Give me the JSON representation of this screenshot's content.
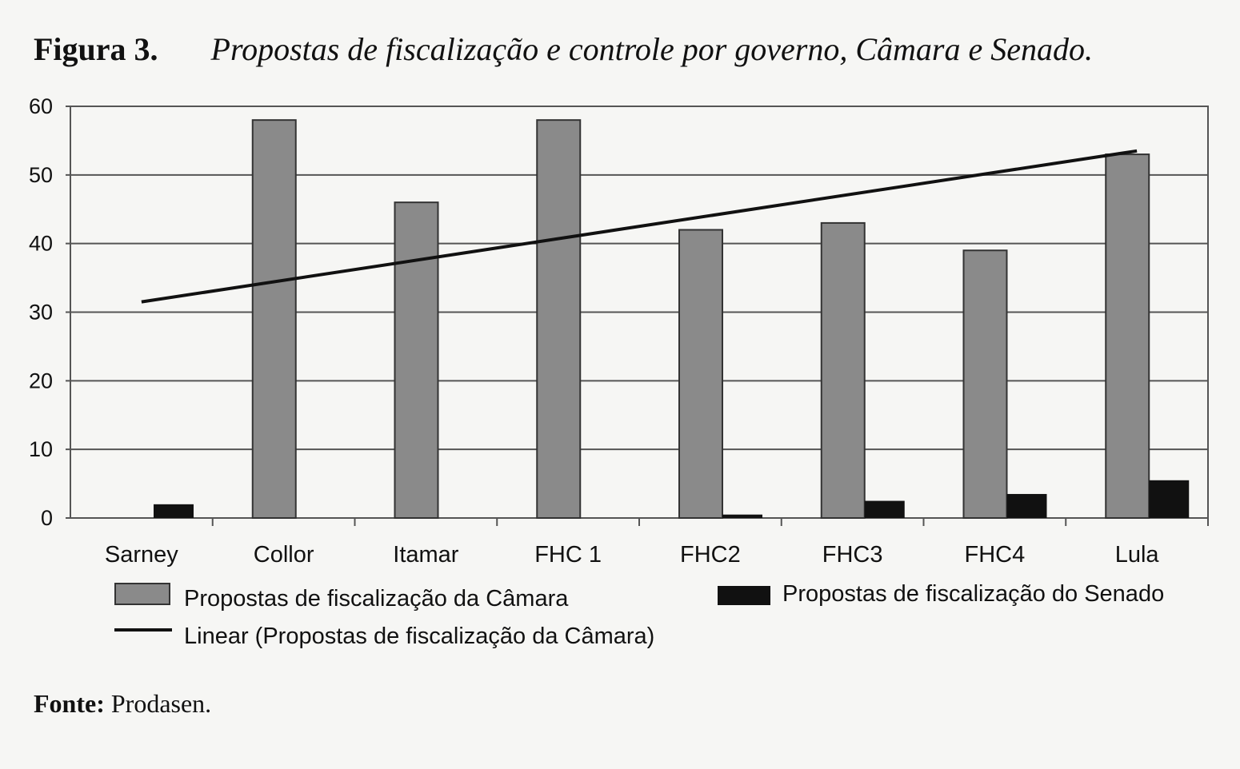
{
  "figure": {
    "label": "Figura 3.",
    "caption": "Propostas de fiscalização e controle por governo, Câmara e Senado."
  },
  "source": {
    "label": "Fonte:",
    "text": "Prodasen."
  },
  "colors": {
    "camara": "#8a8a8a",
    "senado": "#111111",
    "trend": "#111111",
    "grid": "#555555"
  },
  "chart_data": {
    "type": "bar",
    "categories": [
      "Sarney",
      "Collor",
      "Itamar",
      "FHC 1",
      "FHC2",
      "FHC3",
      "FHC4",
      "Lula"
    ],
    "series": [
      {
        "name": "Propostas de fiscalização da Câmara",
        "values": [
          0,
          58,
          46,
          58,
          42,
          43,
          39,
          53
        ]
      },
      {
        "name": "Propostas de fiscalização do Senado",
        "values": [
          2,
          0,
          0,
          0,
          0.5,
          2.5,
          3.5,
          5.5
        ]
      }
    ],
    "trendline": {
      "name": "Linear (Propostas de fiscalização da Câmara)",
      "start": 31.5,
      "end": 53.5
    },
    "ylim": [
      0,
      60
    ],
    "yticks": [
      0,
      10,
      20,
      30,
      40,
      50,
      60
    ],
    "grid": true,
    "legend": "bottom"
  }
}
